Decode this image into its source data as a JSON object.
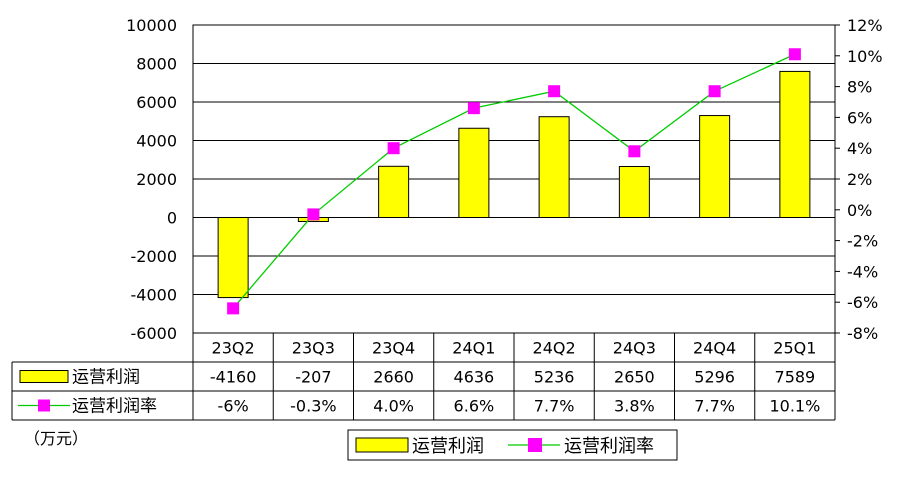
{
  "chart_data": {
    "type": "bar",
    "categories": [
      "23Q2",
      "23Q3",
      "23Q4",
      "24Q1",
      "24Q2",
      "24Q3",
      "24Q4",
      "25Q1"
    ],
    "series": [
      {
        "name": "运营利润",
        "type": "bar",
        "axis": "left",
        "color": "#ffff00",
        "values": [
          -4160,
          -207,
          2660,
          4636,
          5236,
          2650,
          5296,
          7589
        ],
        "labels": [
          "-4160",
          "-207",
          "2660",
          "4636",
          "5236",
          "2650",
          "5296",
          "7589"
        ]
      },
      {
        "name": "运营利润率",
        "type": "line",
        "axis": "right",
        "color": "#00cc00",
        "marker_color": "#ff00ff",
        "values": [
          -6.4,
          -0.3,
          4.0,
          6.6,
          7.7,
          3.8,
          7.7,
          10.1
        ],
        "labels": [
          "-6%",
          "-0.3%",
          "4.0%",
          "6.6%",
          "7.7%",
          "3.8%",
          "7.7%",
          "10.1%"
        ]
      }
    ],
    "y_left": {
      "ylim": [
        -6000,
        10000
      ],
      "ticks": [
        -6000,
        -4000,
        -2000,
        0,
        2000,
        4000,
        6000,
        8000,
        10000
      ],
      "tick_labels": [
        "-6000",
        "-4000",
        "-2000",
        "0",
        "2000",
        "4000",
        "6000",
        "8000",
        "10000"
      ]
    },
    "y_right": {
      "ylim": [
        -8,
        12
      ],
      "ticks": [
        -8,
        -6,
        -4,
        -2,
        0,
        2,
        4,
        6,
        8,
        10,
        12
      ],
      "tick_labels": [
        "-8%",
        "-6%",
        "-4%",
        "-2%",
        "0%",
        "2%",
        "4%",
        "6%",
        "8%",
        "10%",
        "12%"
      ]
    },
    "unit_note": "（万元）",
    "grid": true,
    "legend_position": "bottom-center",
    "data_table": true
  }
}
